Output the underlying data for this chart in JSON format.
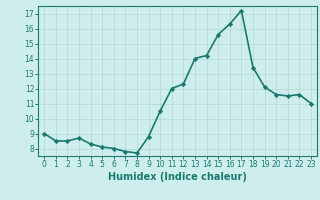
{
  "xlabel": "Humidex (Indice chaleur)",
  "x": [
    0,
    1,
    2,
    3,
    4,
    5,
    6,
    7,
    8,
    9,
    10,
    11,
    12,
    13,
    14,
    15,
    16,
    17,
    18,
    19,
    20,
    21,
    22,
    23
  ],
  "y": [
    9.0,
    8.5,
    8.5,
    8.7,
    8.3,
    8.1,
    8.0,
    7.8,
    7.7,
    8.8,
    10.5,
    12.0,
    12.3,
    14.0,
    14.2,
    15.6,
    16.3,
    17.2,
    13.4,
    12.1,
    11.6,
    11.5,
    11.6,
    11.0
  ],
  "line_color": "#1a7a6e",
  "marker": "D",
  "marker_size": 2.2,
  "bg_color": "#ceeeed",
  "grid_color": "#b8dbd9",
  "ylim": [
    7.5,
    17.5
  ],
  "yticks": [
    8,
    9,
    10,
    11,
    12,
    13,
    14,
    15,
    16,
    17
  ],
  "xlim": [
    -0.5,
    23.5
  ],
  "xticks": [
    0,
    1,
    2,
    3,
    4,
    5,
    6,
    7,
    8,
    9,
    10,
    11,
    12,
    13,
    14,
    15,
    16,
    17,
    18,
    19,
    20,
    21,
    22,
    23
  ],
  "tick_label_fontsize": 5.5,
  "xlabel_fontsize": 7.0,
  "line_width": 1.2
}
